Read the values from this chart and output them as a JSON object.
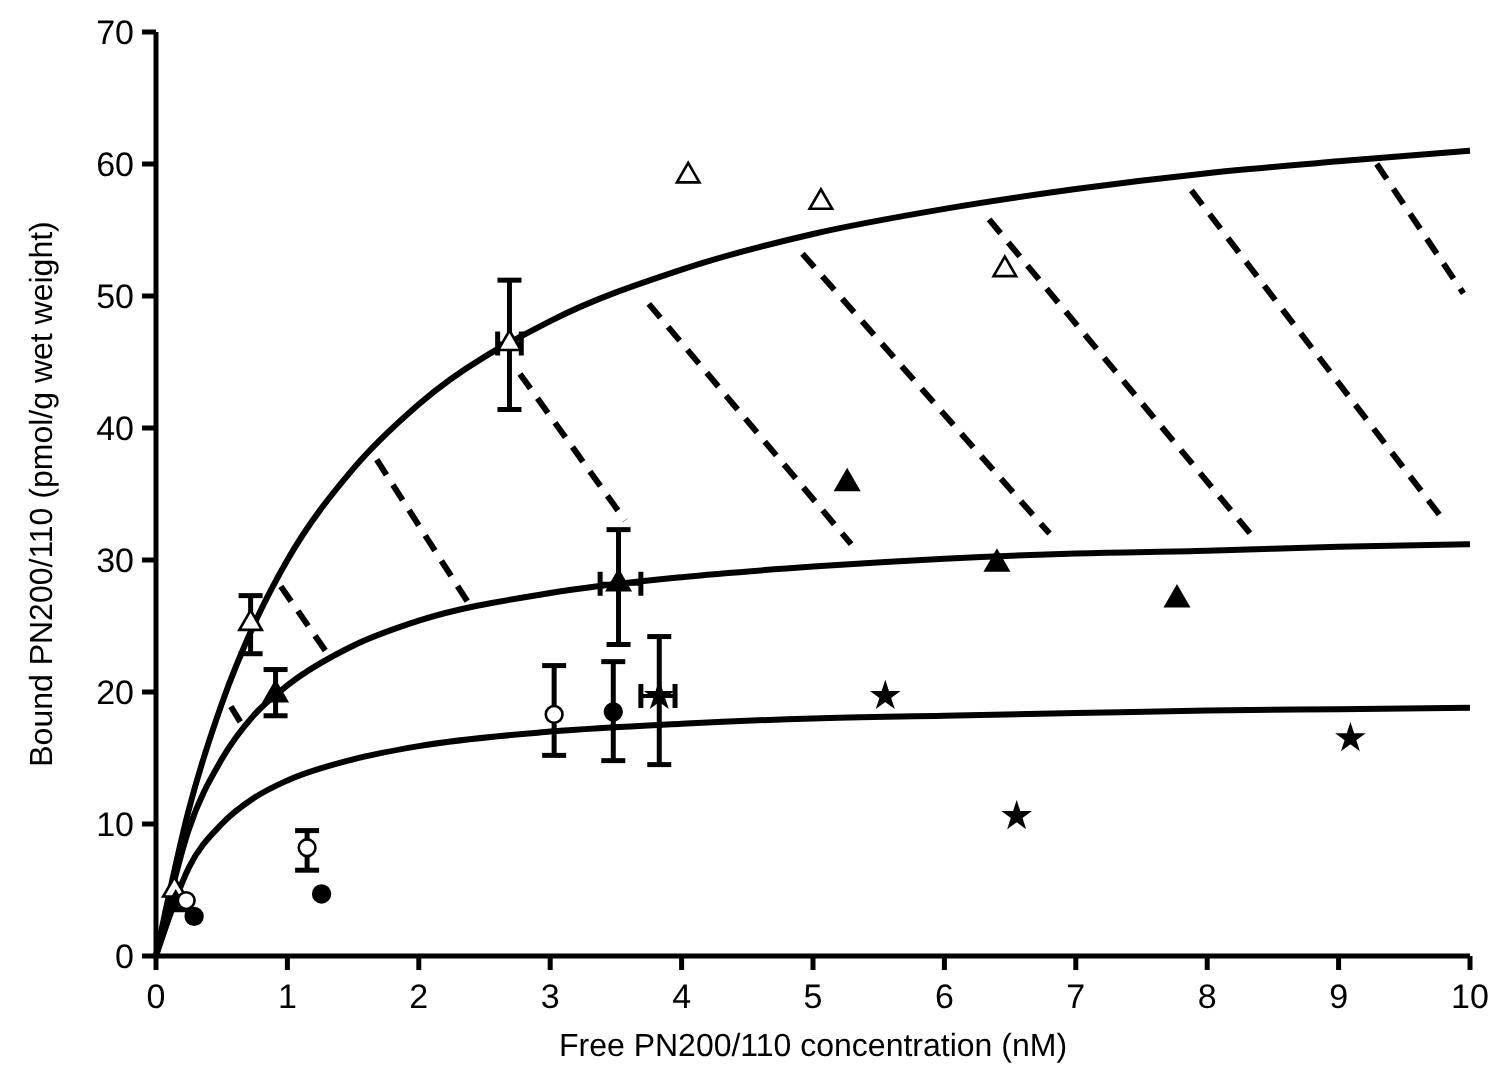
{
  "chart_data": {
    "type": "scatter",
    "xlabel": "Free PN200/110 concentration (nM)",
    "ylabel": "Bound PN200/110 (pmol/g wet weight)",
    "xlim": [
      0,
      10
    ],
    "ylim": [
      0,
      70
    ],
    "xticks": [
      0,
      1,
      2,
      3,
      4,
      5,
      6,
      7,
      8,
      9,
      10
    ],
    "yticks": [
      0,
      10,
      20,
      30,
      40,
      50,
      60,
      70
    ],
    "grid": false,
    "series": [
      {
        "type": "line",
        "color": "#000000",
        "marker": "none",
        "line_style": "solid",
        "x": [
          0,
          0.25,
          0.5,
          0.75,
          1,
          1.5,
          2,
          3,
          4,
          5,
          6,
          7,
          8,
          9,
          10
        ],
        "values": [
          0,
          11.1,
          19.1,
          25.2,
          30.0,
          36.9,
          41.8,
          48.1,
          52.0,
          54.7,
          56.6,
          58.1,
          59.3,
          60.2,
          61.0
        ]
      },
      {
        "type": "line",
        "color": "#000000",
        "marker": "none",
        "line_style": "solid",
        "x": [
          0,
          0.25,
          0.5,
          0.75,
          1,
          1.5,
          2,
          3,
          4,
          5,
          6,
          7,
          8,
          9,
          10
        ],
        "values": [
          0,
          9.6,
          14.9,
          18.3,
          20.5,
          23.5,
          25.4,
          27.5,
          28.7,
          29.5,
          30.1,
          30.5,
          30.7,
          31.0,
          31.2
        ]
      },
      {
        "type": "line",
        "color": "#000000",
        "marker": "none",
        "line_style": "solid",
        "x": [
          0,
          0.25,
          0.5,
          0.75,
          1,
          1.5,
          2,
          3,
          4,
          5,
          6,
          7,
          8,
          9,
          10
        ],
        "values": [
          0,
          6.7,
          10.0,
          12.0,
          13.3,
          14.9,
          15.9,
          17.0,
          17.6,
          18.0,
          18.2,
          18.4,
          18.6,
          18.7,
          18.8
        ]
      },
      {
        "type": "line",
        "color": "#000000",
        "marker": "none",
        "line_style": "dashed",
        "x": [
          0.57,
          0.68
        ],
        "values": [
          18.9,
          17.1
        ]
      },
      {
        "type": "line",
        "color": "#000000",
        "marker": "none",
        "line_style": "dashed",
        "x": [
          0.95,
          1.34
        ],
        "values": [
          28.0,
          22.4
        ]
      },
      {
        "type": "line",
        "color": "#000000",
        "marker": "none",
        "line_style": "dashed",
        "x": [
          1.68,
          2.38
        ],
        "values": [
          37.6,
          26.7
        ]
      },
      {
        "type": "line",
        "color": "#000000",
        "marker": "none",
        "line_style": "dashed",
        "x": [
          2.77,
          3.57
        ],
        "values": [
          44.1,
          33.0
        ]
      },
      {
        "type": "line",
        "color": "#000000",
        "marker": "none",
        "line_style": "dashed",
        "x": [
          3.75,
          5.29
        ],
        "values": [
          49.4,
          31.2
        ]
      },
      {
        "type": "line",
        "color": "#000000",
        "marker": "none",
        "line_style": "dashed",
        "x": [
          4.92,
          6.8
        ],
        "values": [
          53.2,
          32.0
        ]
      },
      {
        "type": "line",
        "color": "#000000",
        "marker": "none",
        "line_style": "dashed",
        "x": [
          6.34,
          8.37
        ],
        "values": [
          55.8,
          31.5
        ]
      },
      {
        "type": "line",
        "color": "#000000",
        "marker": "none",
        "line_style": "dashed",
        "x": [
          7.88,
          9.8
        ],
        "values": [
          58.0,
          33.0
        ]
      },
      {
        "type": "line",
        "color": "#000000",
        "marker": "none",
        "line_style": "dashed",
        "x": [
          9.29,
          9.95
        ],
        "values": [
          60.0,
          50.2
        ]
      },
      {
        "color": "#ffffff",
        "marker": "triangle",
        "x": [
          0.14,
          0.72,
          2.69,
          4.05,
          5.06,
          6.46
        ],
        "values": [
          5.0,
          25.2,
          46.4,
          59.1,
          57.1,
          52.0
        ],
        "errors": [
          null,
          [
            22.9,
            27.3
          ],
          [
            41.4,
            51.2
          ],
          null,
          null,
          null
        ],
        "xerrors": [
          null,
          null,
          [
            2.6,
            2.78
          ],
          null,
          null,
          null
        ]
      },
      {
        "color": "#000000",
        "marker": "triangle",
        "x": [
          0.15,
          0.91,
          3.52,
          5.26,
          6.4,
          7.77
        ],
        "values": [
          3.9,
          19.8,
          28.2,
          35.8,
          29.7,
          27.0
        ],
        "errors": [
          null,
          [
            18.2,
            21.7
          ],
          [
            23.6,
            32.3
          ],
          null,
          null,
          null
        ],
        "xerrors": [
          null,
          null,
          [
            3.38,
            3.69
          ],
          null,
          null,
          null
        ]
      },
      {
        "color": "#ffffff",
        "marker": "circle",
        "x": [
          0.23,
          1.15,
          3.03
        ],
        "values": [
          4.2,
          8.2,
          18.3
        ],
        "errors": [
          null,
          [
            6.5,
            9.5
          ],
          [
            15.2,
            22.0
          ]
        ]
      },
      {
        "color": "#000000",
        "marker": "circle",
        "x": [
          0.29,
          1.26,
          3.48
        ],
        "values": [
          3.0,
          4.7,
          18.5
        ],
        "errors": [
          null,
          null,
          [
            14.8,
            22.3
          ]
        ]
      },
      {
        "color": "#000000",
        "marker": "star",
        "x": [
          3.83,
          5.55,
          6.55,
          9.09
        ],
        "values": [
          19.7,
          19.7,
          10.6,
          16.5
        ],
        "errors": [
          [
            14.5,
            24.2
          ],
          null,
          null,
          null
        ],
        "xerrors": [
          [
            3.69,
            3.95
          ],
          null,
          null,
          null
        ]
      }
    ]
  }
}
